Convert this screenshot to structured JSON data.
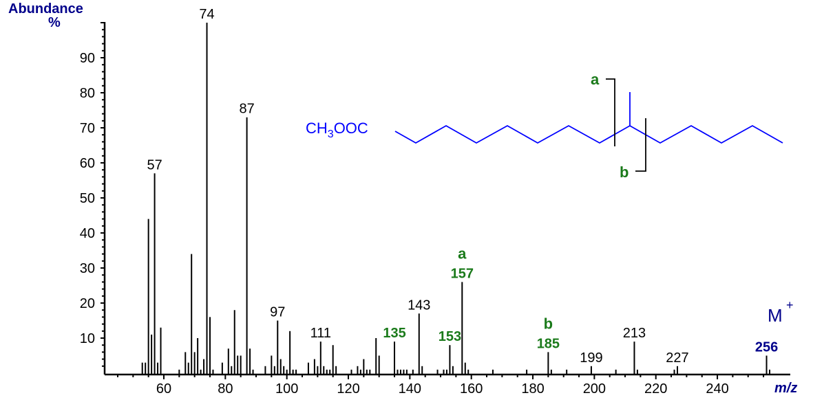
{
  "chart_data": {
    "type": "bar",
    "subtype": "mass-spectrum",
    "title": "",
    "xlabel": "m/z",
    "ylabel": "Abundance %",
    "xlim": [
      40,
      258
    ],
    "ylim": [
      0,
      100
    ],
    "x_ticks": [
      60,
      80,
      100,
      120,
      140,
      160,
      180,
      200,
      220,
      240
    ],
    "y_ticks": [
      10,
      20,
      30,
      40,
      50,
      60,
      70,
      80,
      90
    ],
    "grid": false,
    "peaks": [
      {
        "mz": 53,
        "i": 3
      },
      {
        "mz": 54,
        "i": 3
      },
      {
        "mz": 55,
        "i": 44
      },
      {
        "mz": 56,
        "i": 11
      },
      {
        "mz": 57,
        "i": 57
      },
      {
        "mz": 58,
        "i": 3
      },
      {
        "mz": 59,
        "i": 13
      },
      {
        "mz": 65,
        "i": 1
      },
      {
        "mz": 67,
        "i": 6
      },
      {
        "mz": 68,
        "i": 3
      },
      {
        "mz": 69,
        "i": 34
      },
      {
        "mz": 70,
        "i": 6
      },
      {
        "mz": 71,
        "i": 10
      },
      {
        "mz": 72,
        "i": 1
      },
      {
        "mz": 73,
        "i": 4
      },
      {
        "mz": 74,
        "i": 100
      },
      {
        "mz": 75,
        "i": 16
      },
      {
        "mz": 76,
        "i": 1
      },
      {
        "mz": 79,
        "i": 3
      },
      {
        "mz": 81,
        "i": 7
      },
      {
        "mz": 82,
        "i": 2
      },
      {
        "mz": 83,
        "i": 18
      },
      {
        "mz": 84,
        "i": 5
      },
      {
        "mz": 85,
        "i": 5
      },
      {
        "mz": 87,
        "i": 73
      },
      {
        "mz": 88,
        "i": 7
      },
      {
        "mz": 89,
        "i": 1
      },
      {
        "mz": 93,
        "i": 2
      },
      {
        "mz": 95,
        "i": 5
      },
      {
        "mz": 96,
        "i": 2
      },
      {
        "mz": 97,
        "i": 15
      },
      {
        "mz": 98,
        "i": 4
      },
      {
        "mz": 99,
        "i": 2
      },
      {
        "mz": 100,
        "i": 1
      },
      {
        "mz": 101,
        "i": 12
      },
      {
        "mz": 102,
        "i": 1
      },
      {
        "mz": 103,
        "i": 1
      },
      {
        "mz": 107,
        "i": 3
      },
      {
        "mz": 109,
        "i": 4
      },
      {
        "mz": 110,
        "i": 2
      },
      {
        "mz": 111,
        "i": 9
      },
      {
        "mz": 112,
        "i": 2
      },
      {
        "mz": 113,
        "i": 1
      },
      {
        "mz": 114,
        "i": 1
      },
      {
        "mz": 115,
        "i": 8
      },
      {
        "mz": 116,
        "i": 2
      },
      {
        "mz": 121,
        "i": 1
      },
      {
        "mz": 123,
        "i": 2
      },
      {
        "mz": 124,
        "i": 1
      },
      {
        "mz": 125,
        "i": 4
      },
      {
        "mz": 126,
        "i": 1
      },
      {
        "mz": 127,
        "i": 1
      },
      {
        "mz": 129,
        "i": 10
      },
      {
        "mz": 130,
        "i": 5
      },
      {
        "mz": 135,
        "i": 9
      },
      {
        "mz": 136,
        "i": 1
      },
      {
        "mz": 137,
        "i": 1
      },
      {
        "mz": 138,
        "i": 1
      },
      {
        "mz": 139,
        "i": 1
      },
      {
        "mz": 141,
        "i": 1
      },
      {
        "mz": 143,
        "i": 17
      },
      {
        "mz": 144,
        "i": 2
      },
      {
        "mz": 149,
        "i": 1
      },
      {
        "mz": 151,
        "i": 1
      },
      {
        "mz": 152,
        "i": 1
      },
      {
        "mz": 153,
        "i": 8
      },
      {
        "mz": 154,
        "i": 2
      },
      {
        "mz": 157,
        "i": 26
      },
      {
        "mz": 158,
        "i": 3
      },
      {
        "mz": 159,
        "i": 1
      },
      {
        "mz": 167,
        "i": 1
      },
      {
        "mz": 178,
        "i": 1
      },
      {
        "mz": 185,
        "i": 6
      },
      {
        "mz": 186,
        "i": 1
      },
      {
        "mz": 191,
        "i": 1
      },
      {
        "mz": 199,
        "i": 2
      },
      {
        "mz": 207,
        "i": 1
      },
      {
        "mz": 213,
        "i": 9
      },
      {
        "mz": 214,
        "i": 1
      },
      {
        "mz": 226,
        "i": 1
      },
      {
        "mz": 227,
        "i": 2
      },
      {
        "mz": 256,
        "i": 5
      },
      {
        "mz": 257,
        "i": 1
      }
    ],
    "peak_labels": [
      {
        "mz": 57,
        "text": "57",
        "color": "#000000"
      },
      {
        "mz": 74,
        "text": "74",
        "color": "#000000"
      },
      {
        "mz": 87,
        "text": "87",
        "color": "#000000"
      },
      {
        "mz": 97,
        "text": "97",
        "color": "#000000"
      },
      {
        "mz": 111,
        "text": "111",
        "color": "#000000"
      },
      {
        "mz": 135,
        "text": "135",
        "color": "#1a7a1a",
        "bold": true
      },
      {
        "mz": 143,
        "text": "143",
        "color": "#000000"
      },
      {
        "mz": 153,
        "text": "153",
        "color": "#1a7a1a",
        "bold": true
      },
      {
        "mz": 157,
        "text": "157",
        "color": "#1a7a1a",
        "bold": true,
        "fragment": "a"
      },
      {
        "mz": 185,
        "text": "185",
        "color": "#1a7a1a",
        "bold": true,
        "fragment": "b"
      },
      {
        "mz": 199,
        "text": "199",
        "color": "#000000"
      },
      {
        "mz": 213,
        "text": "213",
        "color": "#000000"
      },
      {
        "mz": 227,
        "text": "227",
        "color": "#000000"
      },
      {
        "mz": 256,
        "text": "256",
        "color": "#00008b",
        "bold": true,
        "annotation": "M+"
      }
    ],
    "annotations": {
      "molecular_ion": "M+",
      "fragment_a": "a",
      "fragment_b": "b",
      "structure_prefix": "CH3OOC"
    }
  },
  "labels": {
    "ylabel_line1": "Abundance",
    "ylabel_line2": "%",
    "xlabel": "m/z",
    "m_plus": "M",
    "m_plus_sup": "+",
    "structure_text_ch": "CH",
    "structure_text_sub": "3",
    "structure_text_rest": "OOC",
    "frag_a": "a",
    "frag_b": "b"
  },
  "colors": {
    "axis": "#000000",
    "structure": "#0000ff",
    "fragment": "#1a7a1a",
    "molecular_ion": "#00008b"
  }
}
